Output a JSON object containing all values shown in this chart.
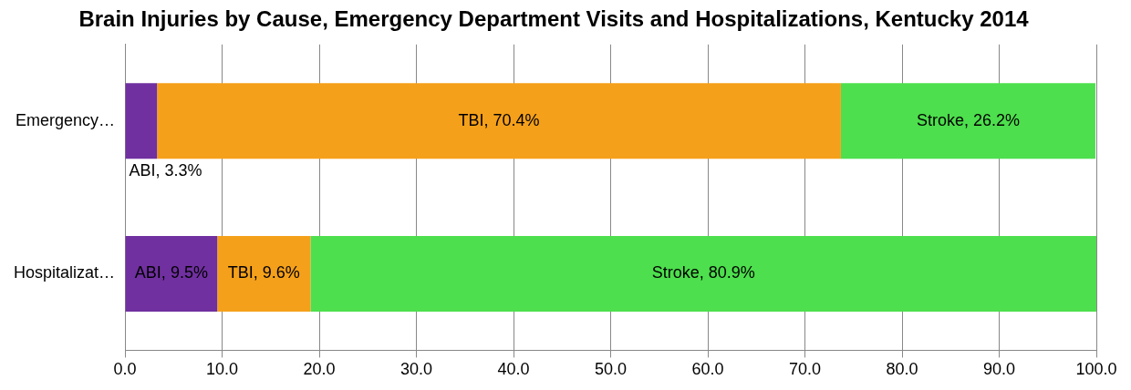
{
  "chart_data": {
    "type": "bar",
    "orientation": "horizontal",
    "stacked": true,
    "title": "Brain Injuries by Cause, Emergency Department Visits and Hospitalizations, Kentucky 2014",
    "categories": [
      "Emergency…",
      "Hospitalizat…"
    ],
    "series": [
      {
        "color": "#7030a0",
        "values": [
          3.3,
          9.5
        ],
        "value_labels": [
          "ABI, 3.3%",
          "ABI, 9.5%"
        ]
      },
      {
        "color": "#f5a01a",
        "values": [
          70.4,
          9.6
        ],
        "value_labels": [
          "TBI, 70.4%",
          "TBI, 9.6%"
        ]
      },
      {
        "color": "#4ddf4d",
        "values": [
          26.2,
          80.9
        ],
        "value_labels": [
          "Stroke, 26.2%",
          "Stroke, 80.9%"
        ]
      }
    ],
    "xlim": [
      0,
      100
    ],
    "xticks": [
      {
        "value": 0,
        "label": "0.0"
      },
      {
        "value": 10,
        "label": "10.0"
      },
      {
        "value": 20,
        "label": "20.0"
      },
      {
        "value": 30,
        "label": "30.0"
      },
      {
        "value": 40,
        "label": "40.0"
      },
      {
        "value": 50,
        "label": "50.0"
      },
      {
        "value": 60,
        "label": "60.0"
      },
      {
        "value": 70,
        "label": "70.0"
      },
      {
        "value": 80,
        "label": "80.0"
      },
      {
        "value": 90,
        "label": "90.0"
      },
      {
        "value": 100,
        "label": "100.0"
      }
    ],
    "grid": "x",
    "legend": false
  }
}
